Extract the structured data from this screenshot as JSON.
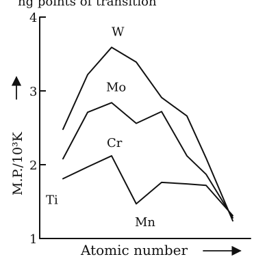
{
  "header": {
    "title": "ng points of transition"
  },
  "chart_data": {
    "type": "line",
    "title": "ng points of transition",
    "xlabel": "Atomic number",
    "ylabel": "M.P./10³K",
    "ylim": [
      1,
      4
    ],
    "yticks": [
      1,
      2,
      3,
      4
    ],
    "grid": false,
    "legend": "none",
    "series": [
      {
        "name": "W",
        "label_anchor": 2,
        "values": [
          2.48,
          3.22,
          3.59,
          3.39,
          2.91,
          2.66,
          2.09,
          1.24
        ]
      },
      {
        "name": "Mo",
        "label_anchor": 2,
        "values": [
          2.08,
          2.71,
          2.84,
          2.56,
          2.72,
          2.12,
          1.87,
          1.28
        ]
      },
      {
        "name": "Ti",
        "label_anchor": 0,
        "values": [
          1.81,
          1.97,
          2.12,
          1.47,
          1.76,
          1.74,
          1.72,
          1.31
        ]
      }
    ],
    "annotations": [
      {
        "text": "Cr",
        "series": 2,
        "point": 2
      },
      {
        "text": "Mn",
        "series": 2,
        "point": 3
      }
    ]
  }
}
